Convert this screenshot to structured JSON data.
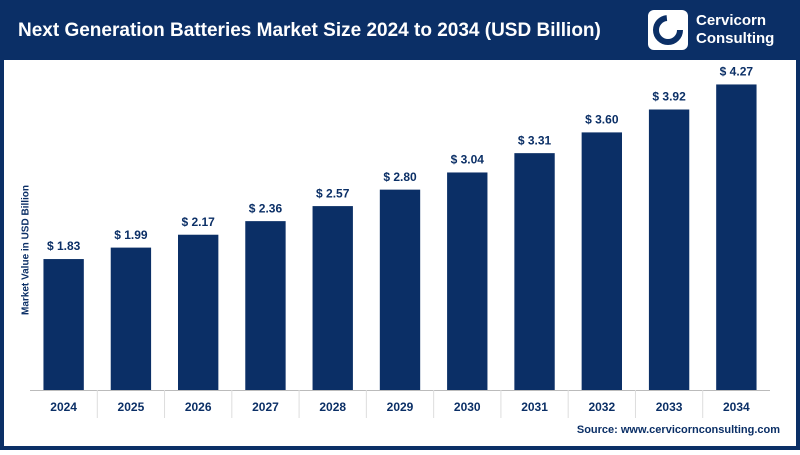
{
  "logo": {
    "line1": "Cervicorn",
    "line2": "Consulting"
  },
  "chart_data": {
    "type": "bar",
    "title": "Next Generation Batteries Market Size 2024 to 2034 (USD Billion)",
    "y_label": "Market Value in USD Billion",
    "source": "Source: www.cervicornconsulting.com",
    "categories": [
      "2024",
      "2025",
      "2026",
      "2027",
      "2028",
      "2029",
      "2030",
      "2031",
      "2032",
      "2033",
      "2034"
    ],
    "values": [
      1.83,
      1.99,
      2.17,
      2.36,
      2.57,
      2.8,
      3.04,
      3.31,
      3.6,
      3.92,
      4.27
    ],
    "value_labels": [
      "$ 1.83",
      "$ 1.99",
      "$ 2.17",
      "$ 2.36",
      "$ 2.57",
      "$ 2.80",
      "$ 3.04",
      "$ 3.31",
      "$ 3.60",
      "$ 3.92",
      "$ 4.27"
    ],
    "color": "#0b2f66",
    "ylim": [
      0,
      4.5
    ]
  }
}
